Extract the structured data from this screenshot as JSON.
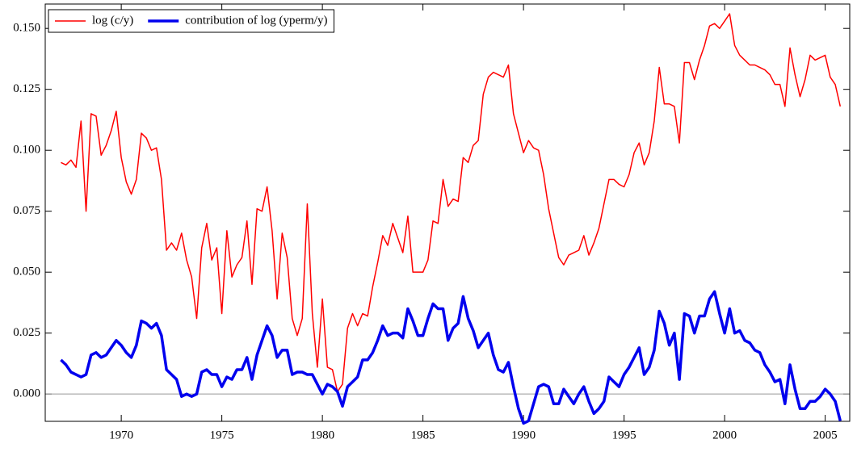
{
  "chart_data": {
    "type": "line",
    "x": [
      1967,
      1967.25,
      1967.5,
      1967.75,
      1968,
      1968.25,
      1968.5,
      1968.75,
      1969,
      1969.25,
      1969.5,
      1969.75,
      1970,
      1970.25,
      1970.5,
      1970.75,
      1971,
      1971.25,
      1971.5,
      1971.75,
      1972,
      1972.25,
      1972.5,
      1972.75,
      1973,
      1973.25,
      1973.5,
      1973.75,
      1974,
      1974.25,
      1974.5,
      1974.75,
      1975,
      1975.25,
      1975.5,
      1975.75,
      1976,
      1976.25,
      1976.5,
      1976.75,
      1977,
      1977.25,
      1977.5,
      1977.75,
      1978,
      1978.25,
      1978.5,
      1978.75,
      1979,
      1979.25,
      1979.5,
      1979.75,
      1980,
      1980.25,
      1980.5,
      1980.75,
      1981,
      1981.25,
      1981.5,
      1981.75,
      1982,
      1982.25,
      1982.5,
      1982.75,
      1983,
      1983.25,
      1983.5,
      1983.75,
      1984,
      1984.25,
      1984.5,
      1984.75,
      1985,
      1985.25,
      1985.5,
      1985.75,
      1986,
      1986.25,
      1986.5,
      1986.75,
      1987,
      1987.25,
      1987.5,
      1987.75,
      1988,
      1988.25,
      1988.5,
      1988.75,
      1989,
      1989.25,
      1989.5,
      1989.75,
      1990,
      1990.25,
      1990.5,
      1990.75,
      1991,
      1991.25,
      1991.5,
      1991.75,
      1992,
      1992.25,
      1992.5,
      1992.75,
      1993,
      1993.25,
      1993.5,
      1993.75,
      1994,
      1994.25,
      1994.5,
      1994.75,
      1995,
      1995.25,
      1995.5,
      1995.75,
      1996,
      1996.25,
      1996.5,
      1996.75,
      1997,
      1997.25,
      1997.5,
      1997.75,
      1998,
      1998.25,
      1998.5,
      1998.75,
      1999,
      1999.25,
      1999.5,
      1999.75,
      2000,
      2000.25,
      2000.5,
      2000.75,
      2001,
      2001.25,
      2001.5,
      2001.75,
      2002,
      2002.25,
      2002.5,
      2002.75,
      2003,
      2003.25,
      2003.5,
      2003.75,
      2004,
      2004.25,
      2004.5,
      2004.75,
      2005,
      2005.25,
      2005.5,
      2005.75
    ],
    "series": [
      {
        "name": "log (c/y)",
        "color": "#ff0000",
        "width": 1.5,
        "values": [
          0.095,
          0.094,
          0.096,
          0.093,
          0.112,
          0.075,
          0.115,
          0.114,
          0.098,
          0.102,
          0.108,
          0.116,
          0.097,
          0.087,
          0.082,
          0.088,
          0.107,
          0.105,
          0.1,
          0.101,
          0.088,
          0.059,
          0.062,
          0.059,
          0.066,
          0.055,
          0.048,
          0.031,
          0.06,
          0.07,
          0.055,
          0.06,
          0.033,
          0.067,
          0.048,
          0.053,
          0.056,
          0.071,
          0.045,
          0.076,
          0.075,
          0.085,
          0.067,
          0.039,
          0.066,
          0.056,
          0.031,
          0.024,
          0.031,
          0.078,
          0.033,
          0.011,
          0.039,
          0.011,
          0.01,
          0.001,
          0.004,
          0.027,
          0.033,
          0.028,
          0.033,
          0.032,
          0.044,
          0.054,
          0.065,
          0.061,
          0.07,
          0.064,
          0.058,
          0.073,
          0.05,
          0.05,
          0.05,
          0.055,
          0.071,
          0.07,
          0.088,
          0.077,
          0.08,
          0.079,
          0.097,
          0.095,
          0.102,
          0.104,
          0.123,
          0.13,
          0.132,
          0.131,
          0.13,
          0.135,
          0.115,
          0.107,
          0.099,
          0.104,
          0.101,
          0.1,
          0.09,
          0.076,
          0.066,
          0.056,
          0.053,
          0.057,
          0.058,
          0.059,
          0.065,
          0.057,
          0.062,
          0.068,
          0.078,
          0.088,
          0.088,
          0.086,
          0.085,
          0.09,
          0.099,
          0.103,
          0.094,
          0.099,
          0.112,
          0.134,
          0.119,
          0.119,
          0.118,
          0.103,
          0.136,
          0.136,
          0.129,
          0.137,
          0.143,
          0.151,
          0.152,
          0.15,
          0.153,
          0.156,
          0.143,
          0.139,
          0.137,
          0.135,
          0.135,
          0.134,
          0.133,
          0.131,
          0.127,
          0.127,
          0.118,
          0.142,
          0.131,
          0.122,
          0.129,
          0.139,
          0.137,
          0.138,
          0.139,
          0.13,
          0.127,
          0.118
        ]
      },
      {
        "name": "contribution of log (yperm/y)",
        "color": "#0000ee",
        "width": 3.5,
        "values": [
          0.014,
          0.012,
          0.009,
          0.008,
          0.007,
          0.008,
          0.016,
          0.017,
          0.015,
          0.016,
          0.019,
          0.022,
          0.02,
          0.017,
          0.015,
          0.02,
          0.03,
          0.029,
          0.027,
          0.029,
          0.024,
          0.01,
          0.008,
          0.006,
          -0.001,
          0.0,
          -0.001,
          0.0,
          0.009,
          0.01,
          0.008,
          0.008,
          0.003,
          0.007,
          0.006,
          0.01,
          0.01,
          0.015,
          0.006,
          0.016,
          0.022,
          0.028,
          0.024,
          0.015,
          0.018,
          0.018,
          0.008,
          0.009,
          0.009,
          0.008,
          0.008,
          0.004,
          0.0,
          0.004,
          0.003,
          0.001,
          -0.005,
          0.003,
          0.005,
          0.007,
          0.014,
          0.014,
          0.017,
          0.022,
          0.028,
          0.024,
          0.025,
          0.025,
          0.023,
          0.035,
          0.03,
          0.024,
          0.024,
          0.031,
          0.037,
          0.035,
          0.035,
          0.022,
          0.027,
          0.029,
          0.04,
          0.031,
          0.026,
          0.019,
          0.022,
          0.025,
          0.016,
          0.01,
          0.009,
          0.013,
          0.003,
          -0.006,
          -0.012,
          -0.011,
          -0.004,
          0.003,
          0.004,
          0.003,
          -0.004,
          -0.004,
          0.002,
          -0.001,
          -0.004,
          0.0,
          0.003,
          -0.003,
          -0.008,
          -0.006,
          -0.003,
          0.007,
          0.005,
          0.003,
          0.008,
          0.011,
          0.015,
          0.019,
          0.008,
          0.011,
          0.018,
          0.034,
          0.029,
          0.02,
          0.025,
          0.006,
          0.033,
          0.032,
          0.025,
          0.032,
          0.032,
          0.039,
          0.042,
          0.033,
          0.025,
          0.035,
          0.025,
          0.026,
          0.022,
          0.021,
          0.018,
          0.017,
          0.012,
          0.009,
          0.005,
          0.006,
          -0.004,
          0.012,
          0.002,
          -0.006,
          -0.006,
          -0.003,
          -0.003,
          -0.001,
          0.002,
          0.0,
          -0.003,
          -0.011
        ]
      }
    ],
    "xlim": [
      1966.22,
      2006.22
    ],
    "xticks": [
      1970,
      1975,
      1980,
      1985,
      1990,
      1995,
      2000,
      2005
    ],
    "ylim": [
      -0.0112,
      0.16
    ],
    "yticks": [
      {
        "value": 0,
        "label": "0.000"
      },
      {
        "value": 0.025,
        "label": "0.025"
      },
      {
        "value": 0.05,
        "label": "0.050"
      },
      {
        "value": 0.075,
        "label": "0.075"
      },
      {
        "value": 0.1,
        "label": "0.100"
      },
      {
        "value": 0.125,
        "label": "0.125"
      },
      {
        "value": 0.15,
        "label": "0.150"
      }
    ],
    "zero_line": true,
    "legend": "upper left"
  }
}
